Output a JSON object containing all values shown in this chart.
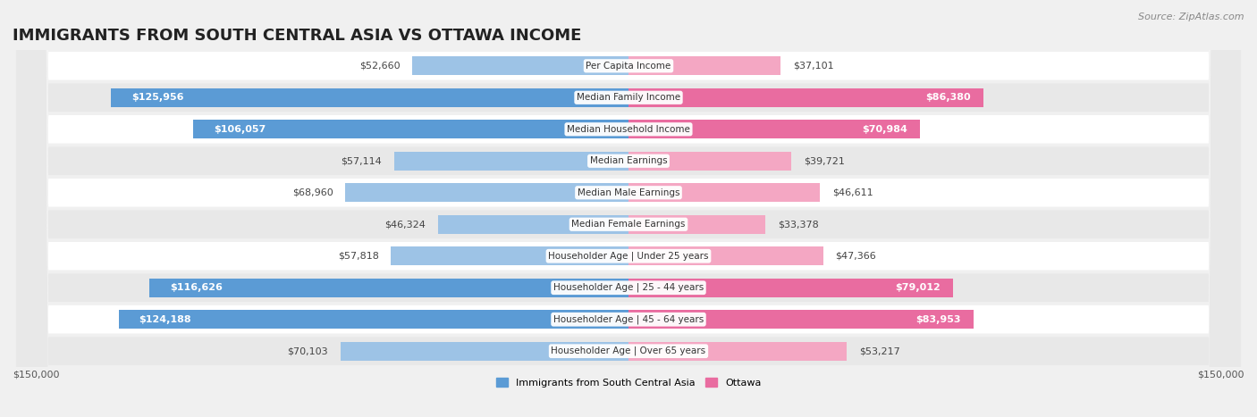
{
  "title": "IMMIGRANTS FROM SOUTH CENTRAL ASIA VS OTTAWA INCOME",
  "source": "Source: ZipAtlas.com",
  "categories": [
    "Per Capita Income",
    "Median Family Income",
    "Median Household Income",
    "Median Earnings",
    "Median Male Earnings",
    "Median Female Earnings",
    "Householder Age | Under 25 years",
    "Householder Age | 25 - 44 years",
    "Householder Age | 45 - 64 years",
    "Householder Age | Over 65 years"
  ],
  "immigrants_values": [
    52660,
    125956,
    106057,
    57114,
    68960,
    46324,
    57818,
    116626,
    124188,
    70103
  ],
  "ottawa_values": [
    37101,
    86380,
    70984,
    39721,
    46611,
    33378,
    47366,
    79012,
    83953,
    53217
  ],
  "immigrants_labels": [
    "$52,660",
    "$125,956",
    "$106,057",
    "$57,114",
    "$68,960",
    "$46,324",
    "$57,818",
    "$116,626",
    "$124,188",
    "$70,103"
  ],
  "ottawa_labels": [
    "$37,101",
    "$86,380",
    "$70,984",
    "$39,721",
    "$46,611",
    "$33,378",
    "$47,366",
    "$79,012",
    "$83,953",
    "$53,217"
  ],
  "immigrants_color_full": "#5b9bd5",
  "immigrants_color_light": "#9dc3e6",
  "ottawa_color_full": "#e96ca0",
  "ottawa_color_light": "#f4a7c3",
  "imm_use_full": [
    false,
    true,
    true,
    false,
    false,
    false,
    false,
    true,
    true,
    false
  ],
  "ott_use_full": [
    false,
    true,
    true,
    false,
    false,
    false,
    false,
    true,
    true,
    false
  ],
  "max_value": 150000,
  "legend_immigrants": "Immigrants from South Central Asia",
  "legend_ottawa": "Ottawa",
  "bg_color": "#f0f0f0",
  "row_bg_even": "#ffffff",
  "row_bg_odd": "#e8e8e8",
  "title_fontsize": 13,
  "label_fontsize": 8.0,
  "source_fontsize": 8.0
}
